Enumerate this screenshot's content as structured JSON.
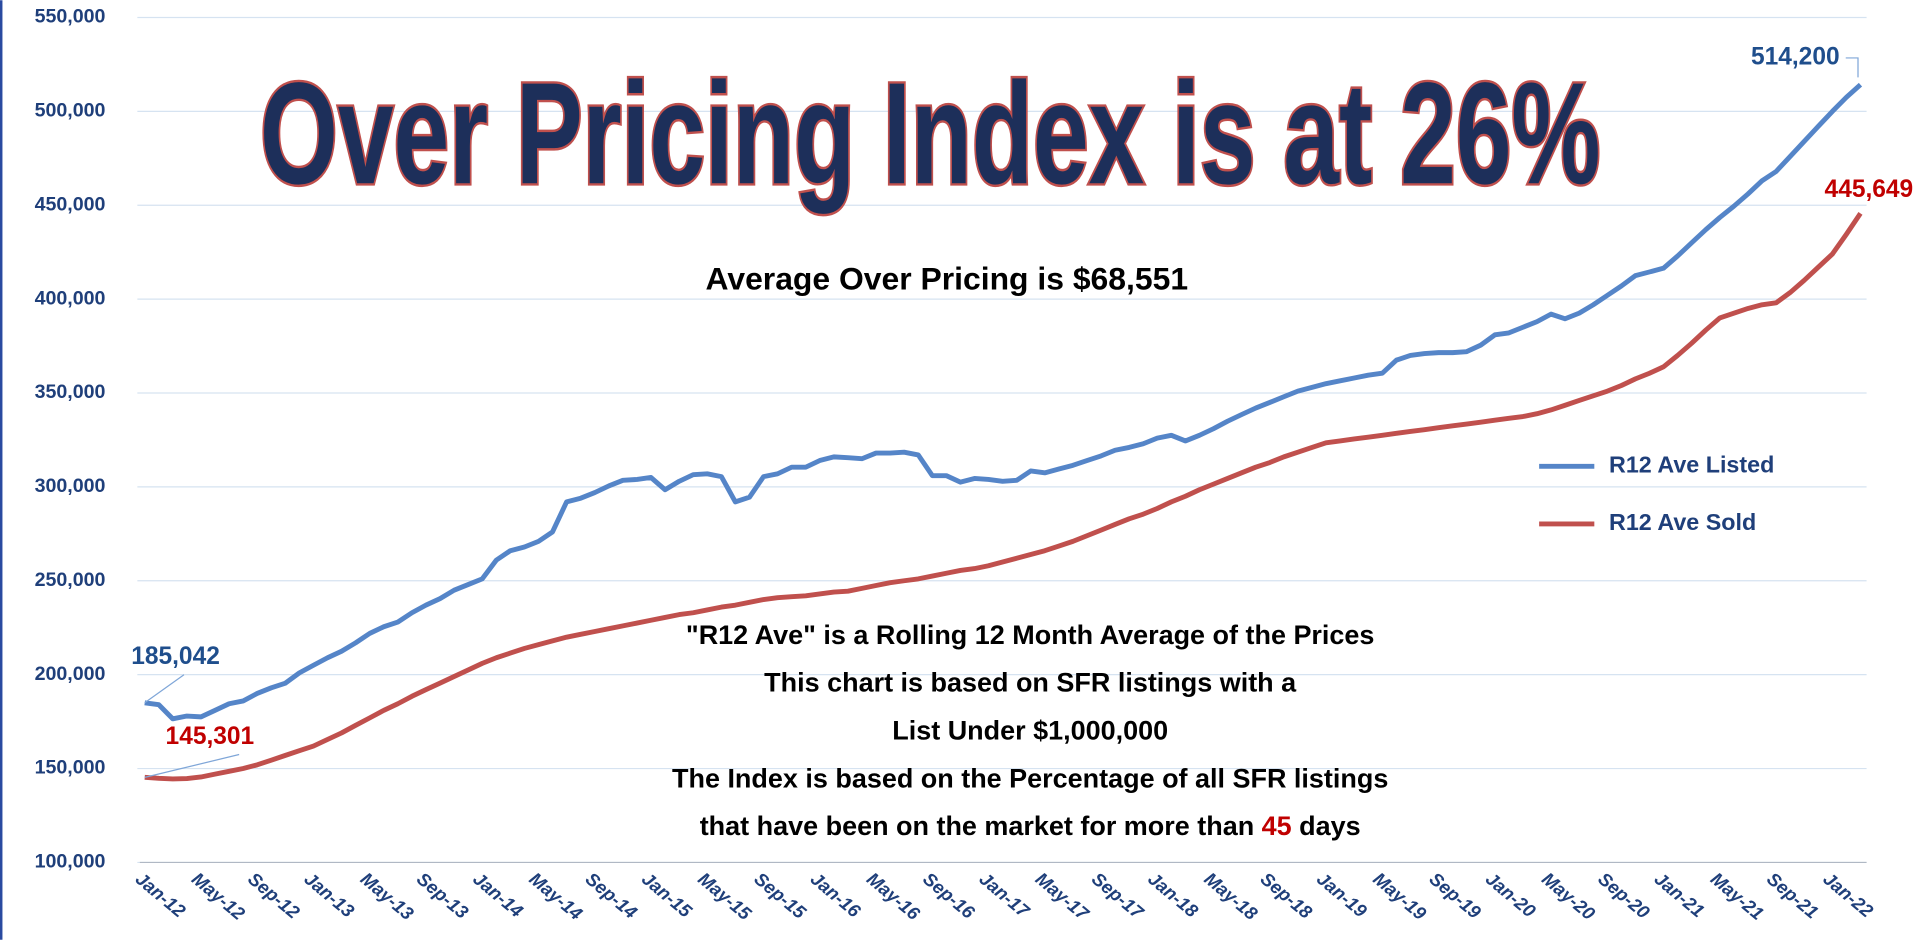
{
  "chart_data": {
    "type": "line",
    "title": "Over Pricing Index is at 26%",
    "subtitle": "Average Over Pricing is $68,551",
    "notes": [
      "\"R12 Ave\" is a Rolling 12 Month Average of the Prices",
      "This chart is based on SFR listings with a",
      "List Under $1,000,000",
      "The Index is based on the Percentage of all SFR listings"
    ],
    "note_last": [
      "that have been on the market for more than ",
      "45",
      " days"
    ],
    "categories": [
      "Jan-12",
      null,
      null,
      null,
      "May-12",
      null,
      null,
      null,
      "Sep-12",
      null,
      null,
      null,
      "Jan-13",
      null,
      null,
      null,
      "May-13",
      null,
      null,
      null,
      "Sep-13",
      null,
      null,
      null,
      "Jan-14",
      null,
      null,
      null,
      "May-14",
      null,
      null,
      null,
      "Sep-14",
      null,
      null,
      null,
      "Jan-15",
      null,
      null,
      null,
      "May-15",
      null,
      null,
      null,
      "Sep-15",
      null,
      null,
      null,
      "Jan-16",
      null,
      null,
      null,
      "May-16",
      null,
      null,
      null,
      "Sep-16",
      null,
      null,
      null,
      "Jan-17",
      null,
      null,
      null,
      "May-17",
      null,
      null,
      null,
      "Sep-17",
      null,
      null,
      null,
      "Jan-18",
      null,
      null,
      null,
      "May-18",
      null,
      null,
      null,
      "Sep-18",
      null,
      null,
      null,
      "Jan-19",
      null,
      null,
      null,
      "May-19",
      null,
      null,
      null,
      "Sep-19",
      null,
      null,
      null,
      "Jan-20",
      null,
      null,
      null,
      "May-20",
      null,
      null,
      null,
      "Sep-20",
      null,
      null,
      null,
      "Jan-21",
      null,
      null,
      null,
      "May-21",
      null,
      null,
      null,
      "Sep-21",
      null,
      null,
      null,
      "Jan-22",
      null,
      null
    ],
    "series": [
      {
        "name": "R12 Ave Listed",
        "color": "#5585c8",
        "label_color": "#1f4e8c",
        "values": [
          185042,
          184000,
          176500,
          178000,
          177500,
          181000,
          184500,
          186000,
          190000,
          193000,
          195500,
          201000,
          205000,
          209000,
          212500,
          217000,
          222000,
          225500,
          228000,
          233000,
          237000,
          240500,
          245000,
          248000,
          251000,
          261000,
          266000,
          268000,
          271000,
          276000,
          292000,
          294000,
          297000,
          300500,
          303500,
          304000,
          305000,
          298500,
          303000,
          306500,
          307000,
          305500,
          292000,
          294500,
          305500,
          307000,
          310500,
          310500,
          314000,
          316000,
          315500,
          315000,
          318000,
          318000,
          318500,
          317000,
          306000,
          306000,
          302500,
          304500,
          304000,
          303000,
          303500,
          308500,
          307500,
          309500,
          311500,
          314000,
          316500,
          319500,
          321000,
          323000,
          326000,
          327500,
          324500,
          327500,
          331000,
          335000,
          338500,
          342000,
          345000,
          348000,
          351000,
          353000,
          355000,
          356500,
          358000,
          359500,
          360500,
          367500,
          370000,
          371000,
          371500,
          371500,
          372000,
          375500,
          381000,
          382000,
          385000,
          388000,
          392000,
          389500,
          392500,
          397000,
          402000,
          407000,
          412500,
          414500,
          416500,
          423000,
          430000,
          437000,
          443500,
          449500,
          456000,
          463000,
          468000,
          476000,
          484000,
          492000,
          500000,
          507500,
          514200
        ],
        "value_labels": [
          "185,042",
          null,
          null,
          null,
          null,
          null,
          null,
          null,
          null,
          null,
          null,
          null,
          null,
          null,
          null,
          null,
          null,
          null,
          null,
          null,
          null,
          null,
          null,
          null,
          null,
          null,
          null,
          null,
          null,
          null,
          null,
          null,
          null,
          null,
          null,
          null,
          null,
          null,
          null,
          null,
          null,
          null,
          null,
          null,
          null,
          null,
          null,
          null,
          null,
          null,
          null,
          null,
          null,
          null,
          null,
          null,
          null,
          null,
          null,
          null,
          null,
          null,
          null,
          null,
          null,
          null,
          null,
          null,
          null,
          null,
          null,
          null,
          null,
          null,
          null,
          null,
          null,
          null,
          null,
          null,
          null,
          null,
          null,
          null,
          null,
          null,
          null,
          null,
          null,
          null,
          null,
          null,
          null,
          null,
          null,
          null,
          null,
          null,
          null,
          null,
          null,
          null,
          null,
          null,
          null,
          null,
          null,
          null,
          null,
          null,
          null,
          null,
          null,
          null,
          null,
          null,
          null,
          null,
          null,
          null,
          null,
          null,
          "514,200"
        ]
      },
      {
        "name": "R12 Ave Sold",
        "color": "#c0504d",
        "label_color": "#c00000",
        "values": [
          145301,
          144800,
          144500,
          144700,
          145500,
          147000,
          148500,
          150000,
          152000,
          154500,
          157000,
          159500,
          162000,
          165500,
          169000,
          173000,
          177000,
          181000,
          184500,
          188500,
          192000,
          195500,
          199000,
          202500,
          206000,
          209000,
          211500,
          214000,
          216000,
          218000,
          220000,
          221500,
          223000,
          224500,
          226000,
          227500,
          229000,
          230500,
          232000,
          233000,
          234500,
          236000,
          237000,
          238500,
          240000,
          241000,
          241500,
          242000,
          243000,
          244000,
          244500,
          246000,
          247500,
          249000,
          250000,
          251000,
          252500,
          254000,
          255500,
          256500,
          258000,
          260000,
          262000,
          264000,
          266000,
          268500,
          271000,
          274000,
          277000,
          280000,
          283000,
          285500,
          288500,
          292000,
          295000,
          298500,
          301500,
          304500,
          307500,
          310500,
          313000,
          316000,
          318500,
          321000,
          323500,
          324500,
          325500,
          326500,
          327500,
          328500,
          329500,
          330500,
          331500,
          332500,
          333500,
          334500,
          335500,
          336500,
          337500,
          339000,
          341000,
          343500,
          346000,
          348500,
          351000,
          354000,
          357500,
          360500,
          364000,
          370000,
          376500,
          383500,
          390000,
          392500,
          395000,
          397000,
          398000,
          403500,
          410000,
          417000,
          424000,
          434500,
          445649
        ],
        "value_labels": [
          "145,301",
          null,
          null,
          null,
          null,
          null,
          null,
          null,
          null,
          null,
          null,
          null,
          null,
          null,
          null,
          null,
          null,
          null,
          null,
          null,
          null,
          null,
          null,
          null,
          null,
          null,
          null,
          null,
          null,
          null,
          null,
          null,
          null,
          null,
          null,
          null,
          null,
          null,
          null,
          null,
          null,
          null,
          null,
          null,
          null,
          null,
          null,
          null,
          null,
          null,
          null,
          null,
          null,
          null,
          null,
          null,
          null,
          null,
          null,
          null,
          null,
          null,
          null,
          null,
          null,
          null,
          null,
          null,
          null,
          null,
          null,
          null,
          null,
          null,
          null,
          null,
          null,
          null,
          null,
          null,
          null,
          null,
          null,
          null,
          null,
          null,
          null,
          null,
          null,
          null,
          null,
          null,
          null,
          null,
          null,
          null,
          null,
          null,
          null,
          null,
          null,
          null,
          null,
          null,
          null,
          null,
          null,
          null,
          null,
          null,
          null,
          null,
          null,
          null,
          null,
          null,
          null,
          null,
          null,
          null,
          null,
          null,
          "445,649"
        ]
      }
    ],
    "ylim": [
      100000,
      550000
    ],
    "yticks": [
      {
        "value": 100000,
        "label": "100,000"
      },
      {
        "value": 150000,
        "label": "150,000"
      },
      {
        "value": 200000,
        "label": "200,000"
      },
      {
        "value": 250000,
        "label": "250,000"
      },
      {
        "value": 300000,
        "label": "300,000"
      },
      {
        "value": 350000,
        "label": "350,000"
      },
      {
        "value": 400000,
        "label": "400,000"
      },
      {
        "value": 450000,
        "label": "450,000"
      },
      {
        "value": 500000,
        "label": "500,000"
      },
      {
        "value": 550000,
        "label": "550,000"
      }
    ],
    "grid": true,
    "legend": "right"
  }
}
